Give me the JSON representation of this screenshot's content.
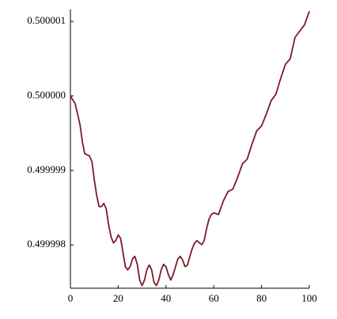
{
  "chart_data": {
    "type": "line",
    "x": [
      0,
      2,
      4,
      5,
      6,
      8,
      9,
      10,
      11,
      12,
      13,
      14,
      15,
      16,
      17,
      18,
      19,
      20,
      21,
      22,
      23,
      24,
      25,
      26,
      27,
      28,
      29,
      30,
      31,
      32,
      33,
      34,
      35,
      36,
      37,
      38,
      39,
      40,
      41,
      42,
      43,
      44,
      45,
      46,
      47,
      48,
      49,
      50,
      51,
      52,
      53,
      54,
      55,
      56,
      57,
      58,
      59,
      60,
      62,
      64,
      66,
      68,
      70,
      72,
      74,
      76,
      78,
      80,
      82,
      84,
      86,
      88,
      90,
      92,
      94,
      96,
      98,
      100
    ],
    "series": [
      {
        "color": "#7b1a2c",
        "values": [
          0.5,
          0.499999894,
          0.499999618,
          0.499999385,
          0.499999226,
          0.499999194,
          0.49999912,
          0.499998876,
          0.499998664,
          0.499998515,
          0.499998515,
          0.499998558,
          0.499998484,
          0.499998272,
          0.499998112,
          0.499998028,
          0.499998059,
          0.499998134,
          0.499998091,
          0.4999979,
          0.499997709,
          0.499997667,
          0.499997709,
          0.499997815,
          0.499997847,
          0.499997741,
          0.499997529,
          0.499997455,
          0.499997529,
          0.499997667,
          0.499997731,
          0.499997667,
          0.499997497,
          0.499997455,
          0.499997529,
          0.499997667,
          0.499997741,
          0.499997709,
          0.499997603,
          0.499997529,
          0.499997603,
          0.499997709,
          0.499997815,
          0.499997847,
          0.499997794,
          0.499997709,
          0.499997731,
          0.499997847,
          0.499997953,
          0.499998028,
          0.499998059,
          0.499998028,
          0.499998006,
          0.499998059,
          0.499998218,
          0.499998346,
          0.499998409,
          0.499998431,
          0.499998409,
          0.49999859,
          0.499998717,
          0.499998749,
          0.499998908,
          0.499999088,
          0.499999152,
          0.499999353,
          0.499999533,
          0.499999597,
          0.499999756,
          0.499999936,
          0.500000021,
          0.500000233,
          0.500000424,
          0.500000498,
          0.500000785,
          0.50000087,
          0.500000954,
          0.500001135
        ]
      }
    ],
    "xlim": [
      0,
      100
    ],
    "xticks": [
      0,
      20,
      40,
      60,
      80,
      100
    ],
    "ylim": [
      0.49999742,
      0.50000116
    ],
    "yticks": [
      0.499998,
      0.499999,
      {
        "value": 0.5,
        "label": "0.500000"
      },
      0.500001
    ]
  }
}
